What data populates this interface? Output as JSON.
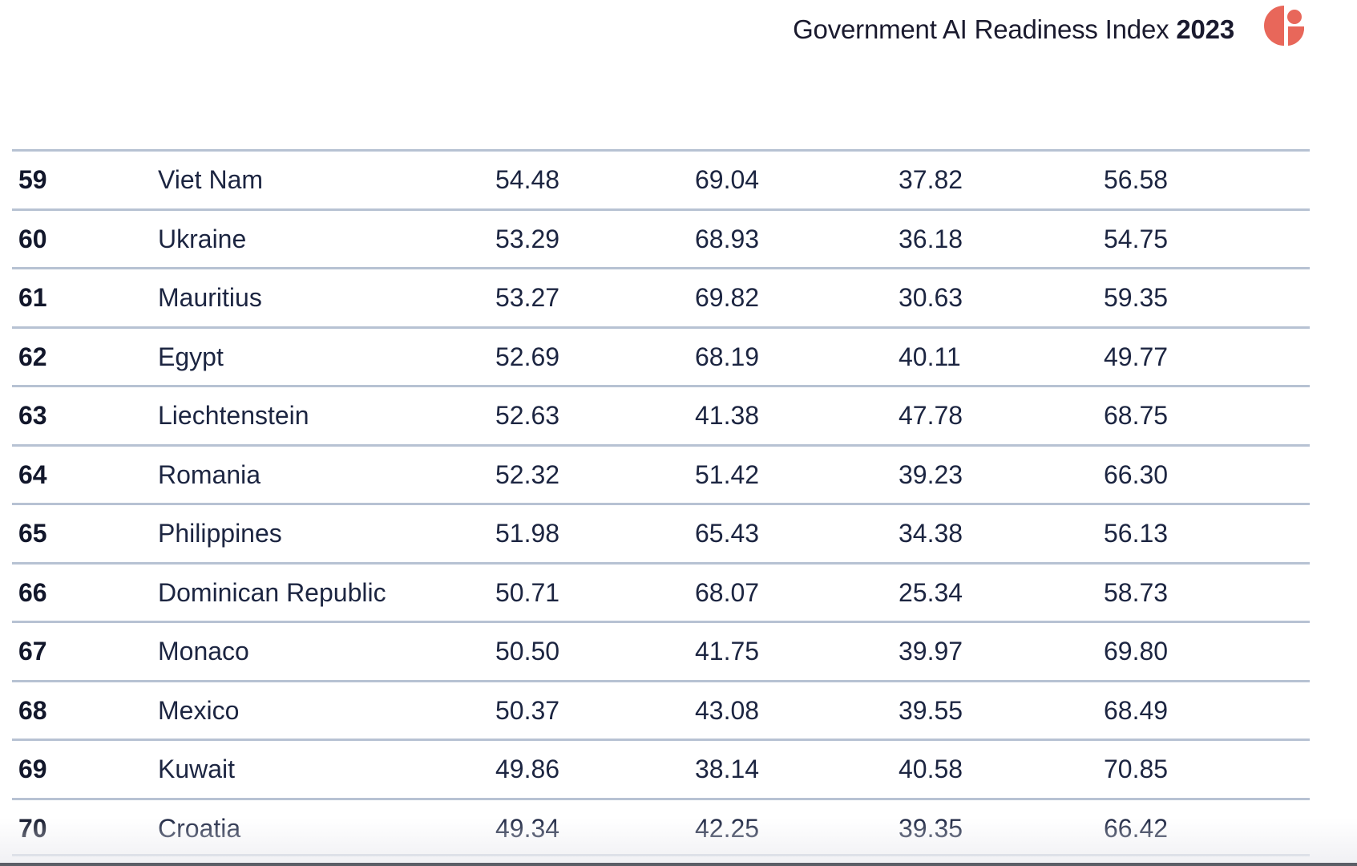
{
  "header": {
    "title": "Government AI Readiness Index",
    "year": "2023"
  },
  "brand": {
    "logo_icon": "oxford-insights-logo",
    "logo_color": "#e8675a"
  },
  "rows": [
    {
      "rank": "59",
      "country": "Viet Nam",
      "v1": "54.48",
      "v2": "69.04",
      "v3": "37.82",
      "v4": "56.58"
    },
    {
      "rank": "60",
      "country": "Ukraine",
      "v1": "53.29",
      "v2": "68.93",
      "v3": "36.18",
      "v4": "54.75"
    },
    {
      "rank": "61",
      "country": "Mauritius",
      "v1": "53.27",
      "v2": "69.82",
      "v3": "30.63",
      "v4": "59.35"
    },
    {
      "rank": "62",
      "country": "Egypt",
      "v1": "52.69",
      "v2": "68.19",
      "v3": "40.11",
      "v4": "49.77"
    },
    {
      "rank": "63",
      "country": "Liechtenstein",
      "v1": "52.63",
      "v2": "41.38",
      "v3": "47.78",
      "v4": "68.75"
    },
    {
      "rank": "64",
      "country": "Romania",
      "v1": "52.32",
      "v2": "51.42",
      "v3": "39.23",
      "v4": "66.30"
    },
    {
      "rank": "65",
      "country": "Philippines",
      "v1": "51.98",
      "v2": "65.43",
      "v3": "34.38",
      "v4": "56.13"
    },
    {
      "rank": "66",
      "country": "Dominican Republic",
      "v1": "50.71",
      "v2": "68.07",
      "v3": "25.34",
      "v4": "58.73"
    },
    {
      "rank": "67",
      "country": "Monaco",
      "v1": "50.50",
      "v2": "41.75",
      "v3": "39.97",
      "v4": "69.80"
    },
    {
      "rank": "68",
      "country": "Mexico",
      "v1": "50.37",
      "v2": "43.08",
      "v3": "39.55",
      "v4": "68.49"
    },
    {
      "rank": "69",
      "country": "Kuwait",
      "v1": "49.86",
      "v2": "38.14",
      "v3": "40.58",
      "v4": "70.85"
    },
    {
      "rank": "70",
      "country": "Croatia",
      "v1": "49.34",
      "v2": "42.25",
      "v3": "39.35",
      "v4": "66.42"
    }
  ]
}
